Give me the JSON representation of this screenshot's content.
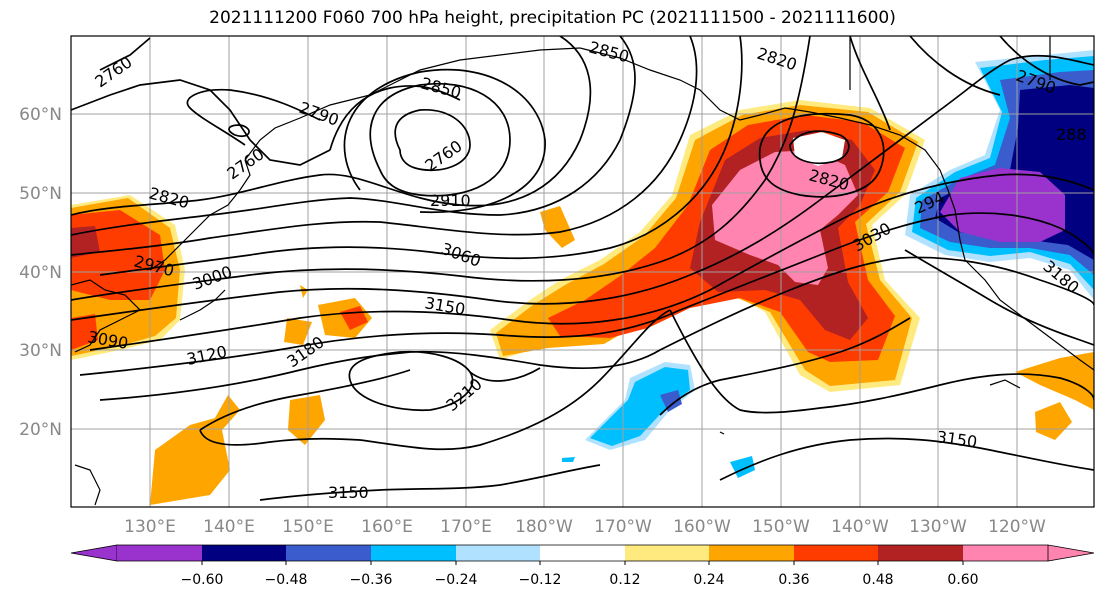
{
  "title": "2021111200 F060 700 hPa height, precipitation PC (2021111500 - 2021111600)",
  "map": {
    "lat_labels": [
      "60°N",
      "50°N",
      "40°N",
      "30°N",
      "20°N"
    ],
    "lon_labels": [
      "130°E",
      "140°E",
      "150°E",
      "160°E",
      "170°E",
      "180°W",
      "170°W",
      "160°W",
      "150°W",
      "140°W",
      "130°W",
      "120°W"
    ],
    "contour_labels": [
      {
        "text": "2760"
      },
      {
        "text": "2850"
      },
      {
        "text": "2820"
      },
      {
        "text": "2850"
      },
      {
        "text": "2790"
      },
      {
        "text": "2790"
      },
      {
        "text": "2760"
      },
      {
        "text": "2760"
      },
      {
        "text": "2820"
      },
      {
        "text": "2910"
      },
      {
        "text": "2820"
      },
      {
        "text": "2970"
      },
      {
        "text": "3000"
      },
      {
        "text": "3060"
      },
      {
        "text": "3030"
      },
      {
        "text": "3150"
      },
      {
        "text": "3090"
      },
      {
        "text": "3120"
      },
      {
        "text": "3180"
      },
      {
        "text": "3210"
      },
      {
        "text": "3180"
      },
      {
        "text": "3150"
      },
      {
        "text": "3150"
      },
      {
        "text": "288"
      },
      {
        "text": "294"
      }
    ],
    "colors": {
      "fill_pink": "#ff85b0",
      "fill_darkred": "#b22222",
      "fill_red": "#ff3c00",
      "fill_orange": "#ffa500",
      "fill_yellow": "#ffea80",
      "fill_violet": "#9a32cd",
      "fill_navy": "#000080",
      "fill_blue": "#3a5ccc",
      "fill_cyan": "#00bfff",
      "fill_lightblue": "#b0e2ff"
    }
  },
  "colorbar": {
    "ticks": [
      "−0.60",
      "−0.48",
      "−0.36",
      "−0.24",
      "−0.12",
      "0.12",
      "0.24",
      "0.36",
      "0.48",
      "0.60"
    ],
    "colors": [
      "#9a32cd",
      "#000080",
      "#3a5ccc",
      "#00bfff",
      "#b0e2ff",
      "#ffffff",
      "#ffea80",
      "#ffa500",
      "#ff3c00",
      "#b22222",
      "#ff85b0"
    ]
  }
}
